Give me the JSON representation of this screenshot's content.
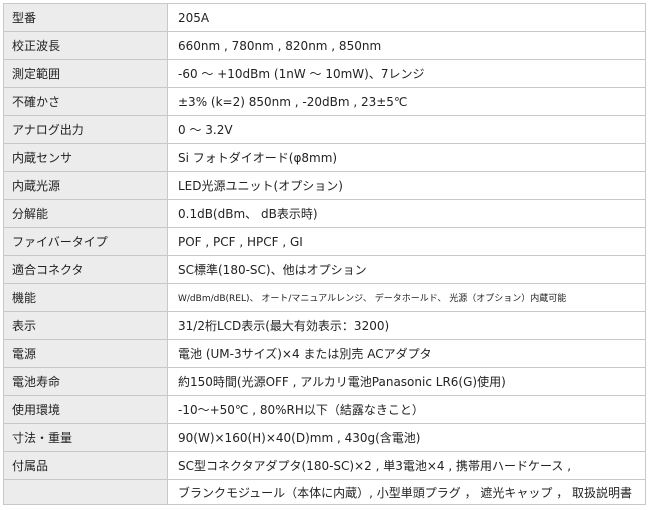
{
  "rows": [
    {
      "label": "型番",
      "value": "205A"
    },
    {
      "label": "校正波長",
      "value": "660nm , 780nm , 820nm , 850nm"
    },
    {
      "label": "測定範囲",
      "value": "-60 ～ +10dBm (1nW ～ 10mW)、7レンジ"
    },
    {
      "label": "不確かさ",
      "value": "±3% (k=2) 850nm , -20dBm , 23±5℃"
    },
    {
      "label": "アナログ出力",
      "value": "0 ～ 3.2V"
    },
    {
      "label": "内蔵センサ",
      "value": "Si フォトダイオード(φ8mm)"
    },
    {
      "label": "内蔵光源",
      "value": "LED光源ユニット(オプション)"
    },
    {
      "label": "分解能",
      "value": "0.1dB(dBm、 dB表示時)"
    },
    {
      "label": "ファイバータイプ",
      "value": "POF , PCF , HPCF , GI"
    },
    {
      "label": "適合コネクタ",
      "value": "SC標準(180-SC)、他はオプション"
    },
    {
      "label": "機能",
      "value": "W/dBm/dB(REL)、 オート/マニュアルレンジ、 データホールド、 光源（オプション）内蔵可能"
    },
    {
      "label": "表示",
      "value": "31/2桁LCD表示(最大有効表示：3200)"
    },
    {
      "label": "電源",
      "value": "電池 (UM-3サイズ)×4 または別売 ACアダプタ"
    },
    {
      "label": "電池寿命",
      "value": "約150時間(光源OFF , アルカリ電池Panasonic LR6(G)使用)"
    },
    {
      "label": "使用環境",
      "value": "-10～+50℃ , 80%RH以下（結露なきこと）"
    },
    {
      "label": "寸法・重量",
      "value": "90(W)×160(H)×40(D)mm , 430g(含電池)"
    },
    {
      "label": "付属品",
      "value": "SC型コネクタアダプタ(180-SC)×2 , 単3電池×4 , 携帯用ハードケース ,"
    },
    {
      "label": "",
      "value": "ブランクモジュール（本体に内蔵）, 小型単頭プラグ ， 遮光キャップ ， 取扱説明書"
    }
  ]
}
